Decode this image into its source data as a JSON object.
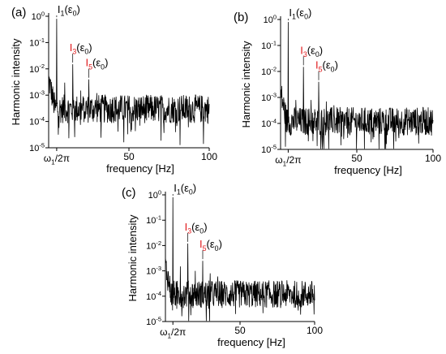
{
  "figure": {
    "panels": [
      {
        "id": "a",
        "label": "(a)"
      },
      {
        "id": "b",
        "label": "(b)"
      },
      {
        "id": "c",
        "label": "(c)"
      }
    ],
    "colors": {
      "trace": "#000000",
      "axes": "#000000",
      "annotation_red": "#e0191b",
      "annotation_black": "#000000"
    }
  },
  "chart_data": [
    {
      "panel": "(a)",
      "type": "line",
      "xlabel": "frequency [Hz]",
      "ylabel": "Harmonic intensity",
      "y_scale": "log",
      "xlim": [
        0,
        100
      ],
      "ylim": [
        1e-05,
        1
      ],
      "x_ticks": [
        50,
        100
      ],
      "x_tick_labels": [
        "50",
        "100"
      ],
      "y_ticks": [
        1,
        0.1,
        0.01,
        0.001,
        0.0001,
        1e-05
      ],
      "y_tick_labels": [
        {
          "base": "10",
          "exp": "0"
        },
        {
          "base": "10",
          "exp": "-1"
        },
        {
          "base": "10",
          "exp": "-2"
        },
        {
          "base": "10",
          "exp": "-3"
        },
        {
          "base": "10",
          "exp": "-4"
        },
        {
          "base": "10",
          "exp": "-5"
        }
      ],
      "special_tick": {
        "x": 5,
        "text": "ω",
        "sub": "1",
        "rest": "/2π"
      },
      "grid": false,
      "noise_floor": 0.0003,
      "harmonics": [
        {
          "label": "I",
          "sub": "1",
          "suffix": "(ε",
          "suffix_sub": "0",
          "close": ")",
          "color": "black",
          "x": 5,
          "y": 0.8
        },
        {
          "label": "I",
          "sub": "3",
          "suffix": "(ε",
          "suffix_sub": "0",
          "close": ")",
          "color": "red",
          "x": 15,
          "y": 0.015
        },
        {
          "label": "I",
          "sub": "5",
          "suffix": "(ε",
          "suffix_sub": "0",
          "close": ")",
          "color": "red",
          "x": 25,
          "y": 0.004
        }
      ],
      "other_peaks": [
        {
          "x": 10,
          "y": 0.003
        },
        {
          "x": 20,
          "y": 0.0015
        },
        {
          "x": 30,
          "y": 0.0012
        },
        {
          "x": 35,
          "y": 0.0009
        },
        {
          "x": 40,
          "y": 0.0008
        }
      ]
    },
    {
      "panel": "(b)",
      "type": "line",
      "xlabel": "frequency [Hz]",
      "ylabel": "Harmonic intensity",
      "y_scale": "log",
      "xlim": [
        0,
        100
      ],
      "ylim": [
        1e-05,
        1
      ],
      "x_ticks": [
        50,
        100
      ],
      "x_tick_labels": [
        "50",
        "100"
      ],
      "y_ticks": [
        1,
        0.1,
        0.01,
        0.001,
        0.0001,
        1e-05
      ],
      "y_tick_labels": [
        {
          "base": "10",
          "exp": "0"
        },
        {
          "base": "10",
          "exp": "-1"
        },
        {
          "base": "10",
          "exp": "-2"
        },
        {
          "base": "10",
          "exp": "-3"
        },
        {
          "base": "10",
          "exp": "-4"
        },
        {
          "base": "10",
          "exp": "-5"
        }
      ],
      "special_tick": {
        "x": 5,
        "text": "ω",
        "sub": "1",
        "rest": "/2π"
      },
      "grid": false,
      "noise_floor": 0.00012,
      "harmonics": [
        {
          "label": "I",
          "sub": "1",
          "suffix": "(ε",
          "suffix_sub": "0",
          "close": ")",
          "color": "black",
          "x": 5,
          "y": 0.8
        },
        {
          "label": "I",
          "sub": "3",
          "suffix": "(ε",
          "suffix_sub": "0",
          "close": ")",
          "color": "red",
          "x": 15,
          "y": 0.015
        },
        {
          "label": "I",
          "sub": "5",
          "suffix": "(ε",
          "suffix_sub": "0",
          "close": ")",
          "color": "red",
          "x": 25,
          "y": 0.004
        }
      ],
      "other_peaks": [
        {
          "x": 10,
          "y": 0.0008
        },
        {
          "x": 20,
          "y": 0.0008
        },
        {
          "x": 30,
          "y": 0.0007
        },
        {
          "x": 35,
          "y": 0.0005
        }
      ]
    },
    {
      "panel": "(c)",
      "type": "line",
      "xlabel": "frequency [Hz]",
      "ylabel": "Harmonic intensity",
      "y_scale": "log",
      "xlim": [
        0,
        100
      ],
      "ylim": [
        1e-05,
        1
      ],
      "x_ticks": [
        50,
        100
      ],
      "x_tick_labels": [
        "50",
        "100"
      ],
      "y_ticks": [
        1,
        0.1,
        0.01,
        0.001,
        0.0001,
        1e-05
      ],
      "y_tick_labels": [
        {
          "base": "10",
          "exp": "0"
        },
        {
          "base": "10",
          "exp": "-1"
        },
        {
          "base": "10",
          "exp": "-2"
        },
        {
          "base": "10",
          "exp": "-3"
        },
        {
          "base": "10",
          "exp": "-4"
        },
        {
          "base": "10",
          "exp": "-5"
        }
      ],
      "special_tick": {
        "x": 5,
        "text": "ω",
        "sub": "1",
        "rest": "/2π"
      },
      "grid": false,
      "noise_floor": 0.00012,
      "harmonics": [
        {
          "label": "I",
          "sub": "1",
          "suffix": "(ε",
          "suffix_sub": "0",
          "close": ")",
          "color": "black",
          "x": 5,
          "y": 0.8
        },
        {
          "label": "I",
          "sub": "3",
          "suffix": "(ε",
          "suffix_sub": "0",
          "close": ")",
          "color": "red",
          "x": 15,
          "y": 0.012
        },
        {
          "label": "I",
          "sub": "5",
          "suffix": "(ε",
          "suffix_sub": "0",
          "close": ")",
          "color": "red",
          "x": 25,
          "y": 0.0025
        }
      ],
      "other_peaks": [
        {
          "x": 10,
          "y": 0.0015
        },
        {
          "x": 20,
          "y": 0.001
        },
        {
          "x": 30,
          "y": 0.0008
        },
        {
          "x": 35,
          "y": 0.0006
        }
      ]
    }
  ]
}
